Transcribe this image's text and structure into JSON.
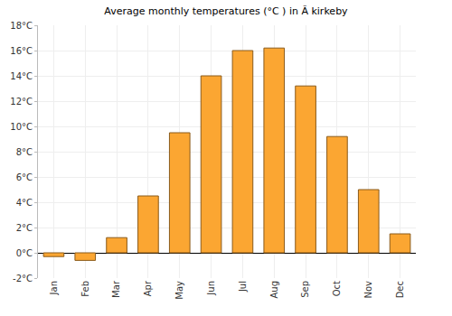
{
  "chart_data": {
    "type": "bar",
    "title": "Average monthly temperatures (°C ) in Ã kirkeby",
    "categories": [
      "Jan",
      "Feb",
      "Mar",
      "Apr",
      "May",
      "Jun",
      "Jul",
      "Aug",
      "Sep",
      "Oct",
      "Nov",
      "Dec"
    ],
    "values": [
      -0.3,
      -0.6,
      1.2,
      4.5,
      9.5,
      14.0,
      16.0,
      16.2,
      13.2,
      9.2,
      5.0,
      1.5
    ],
    "color": "#fba632",
    "ylim": [
      -2,
      18
    ],
    "yticks": [
      {
        "value": -2,
        "label": "-2°C"
      },
      {
        "value": 0,
        "label": "0°C"
      },
      {
        "value": 2,
        "label": "2°C"
      },
      {
        "value": 4,
        "label": "4°C"
      },
      {
        "value": 6,
        "label": "6°C"
      },
      {
        "value": 8,
        "label": "8°C"
      },
      {
        "value": 10,
        "label": "10°C"
      },
      {
        "value": 12,
        "label": "12°C"
      },
      {
        "value": 14,
        "label": "14°C"
      },
      {
        "value": 16,
        "label": "16°C"
      },
      {
        "value": 18,
        "label": "18°C"
      }
    ],
    "grid": true
  }
}
